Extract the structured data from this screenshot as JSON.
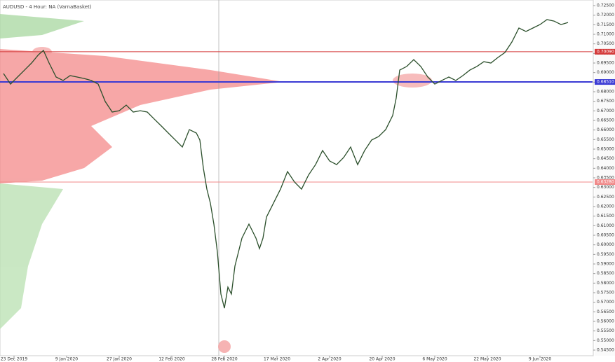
{
  "chart_data": {
    "type": "line",
    "title": "AUDUSD - 4 Hour: NA (VarnaBasket)",
    "series": [
      {
        "name": "AUDUSD",
        "color": "#2b4f2b",
        "x": [
          5,
          15,
          25,
          35,
          45,
          55,
          62,
          70,
          80,
          90,
          100,
          110,
          120,
          130,
          140,
          150,
          160,
          170,
          180,
          190,
          200,
          210,
          220,
          230,
          240,
          250,
          260,
          270,
          280,
          285,
          290,
          295,
          300,
          305,
          310,
          315,
          320,
          325,
          330,
          335,
          340,
          345,
          350,
          355,
          360,
          365,
          370,
          375,
          380,
          390,
          400,
          410,
          420,
          430,
          440,
          450,
          460,
          470,
          480,
          490,
          500,
          510,
          520,
          530,
          540,
          550,
          560,
          565,
          570,
          580,
          590,
          600,
          610,
          620,
          630,
          640,
          650,
          660,
          670,
          680,
          690,
          700,
          710,
          720,
          730,
          740,
          750,
          760,
          770,
          780,
          790,
          800,
          810
        ],
        "values": [
          0.6895,
          0.684,
          0.6877,
          0.6913,
          0.695,
          0.6994,
          0.7016,
          0.695,
          0.6877,
          0.6859,
          0.6884,
          0.6877,
          0.6869,
          0.6859,
          0.684,
          0.6749,
          0.6694,
          0.6701,
          0.673,
          0.6694,
          0.6701,
          0.6694,
          0.6657,
          0.6621,
          0.6584,
          0.6548,
          0.6511,
          0.6602,
          0.6584,
          0.6548,
          0.6401,
          0.6291,
          0.6218,
          0.6108,
          0.5962,
          0.5743,
          0.5669,
          0.5779,
          0.5743,
          0.5889,
          0.5962,
          0.6035,
          0.6072,
          0.6108,
          0.6072,
          0.6035,
          0.598,
          0.6035,
          0.6145,
          0.6218,
          0.6291,
          0.6383,
          0.6328,
          0.6291,
          0.6365,
          0.6419,
          0.6493,
          0.6438,
          0.6419,
          0.6456,
          0.6511,
          0.6419,
          0.6493,
          0.6548,
          0.6566,
          0.6602,
          0.6676,
          0.6767,
          0.6913,
          0.6932,
          0.6968,
          0.6932,
          0.6877,
          0.684,
          0.6859,
          0.6877,
          0.6859,
          0.6884,
          0.6913,
          0.6932,
          0.6957,
          0.695,
          0.6979,
          0.7005,
          0.706,
          0.7133,
          0.7115,
          0.7133,
          0.7151,
          0.7177,
          0.7169,
          0.7151,
          0.7162
        ]
      }
    ],
    "levels": [
      {
        "value": 0.7009,
        "label": "0.70090",
        "color": "#d43a3a"
      },
      {
        "value": 0.6851,
        "label": "0.68510",
        "color": "#3a3ad4"
      },
      {
        "value": 0.6328,
        "label": "0.63280",
        "color": "#f08a8a"
      }
    ],
    "xlim": [
      0,
      845
    ],
    "xticks": [
      {
        "value": 20,
        "label": "23 Dec 2019"
      },
      {
        "value": 95,
        "label": "9 Jan 2020"
      },
      {
        "value": 170,
        "label": "27 Jan 2020"
      },
      {
        "value": 245,
        "label": "12 Feb 2020"
      },
      {
        "value": 320,
        "label": "28 Feb 2020"
      },
      {
        "value": 395,
        "label": "17 Mar 2020"
      },
      {
        "value": 470,
        "label": "2 Apr 2020"
      },
      {
        "value": 545,
        "label": "20 Apr 2020"
      },
      {
        "value": 620,
        "label": "6 May 2020"
      },
      {
        "value": 695,
        "label": "22 May 2020"
      },
      {
        "value": 770,
        "label": "9 Jun 2020"
      }
    ],
    "ylim": [
      0.545,
      0.725
    ],
    "yticks": [
      {
        "value": 0.545,
        "label": "0.54500"
      },
      {
        "value": 0.55,
        "label": "0.55000"
      },
      {
        "value": 0.555,
        "label": "0.55500"
      },
      {
        "value": 0.56,
        "label": "0.56000"
      },
      {
        "value": 0.565,
        "label": "0.56500"
      },
      {
        "value": 0.57,
        "label": "0.57000"
      },
      {
        "value": 0.575,
        "label": "0.57500"
      },
      {
        "value": 0.58,
        "label": "0.58000"
      },
      {
        "value": 0.585,
        "label": "0.58500"
      },
      {
        "value": 0.59,
        "label": "0.59000"
      },
      {
        "value": 0.595,
        "label": "0.59500"
      },
      {
        "value": 0.6,
        "label": "0.60000"
      },
      {
        "value": 0.605,
        "label": "0.60500"
      },
      {
        "value": 0.61,
        "label": "0.61000"
      },
      {
        "value": 0.615,
        "label": "0.61500"
      },
      {
        "value": 0.62,
        "label": "0.62000"
      },
      {
        "value": 0.625,
        "label": "0.62500"
      },
      {
        "value": 0.63,
        "label": "0.63000"
      },
      {
        "value": 0.635,
        "label": "0.63500"
      },
      {
        "value": 0.64,
        "label": "0.64000"
      },
      {
        "value": 0.645,
        "label": "0.64500"
      },
      {
        "value": 0.65,
        "label": "0.65000"
      },
      {
        "value": 0.655,
        "label": "0.65500"
      },
      {
        "value": 0.66,
        "label": "0.66000"
      },
      {
        "value": 0.665,
        "label": "0.66500"
      },
      {
        "value": 0.67,
        "label": "0.67000"
      },
      {
        "value": 0.675,
        "label": "0.67500"
      },
      {
        "value": 0.68,
        "label": "0.68000"
      },
      {
        "value": 0.685,
        "label": "0.68500"
      },
      {
        "value": 0.69,
        "label": "0.69000"
      },
      {
        "value": 0.695,
        "label": "0.69500"
      },
      {
        "value": 0.7,
        "label": "0.70000"
      },
      {
        "value": 0.705,
        "label": "0.70500"
      },
      {
        "value": 0.71,
        "label": "0.71000"
      },
      {
        "value": 0.715,
        "label": "0.71500"
      },
      {
        "value": 0.72,
        "label": "0.72000"
      },
      {
        "value": 0.725,
        "label": "0.72500"
      }
    ],
    "grid": false
  }
}
